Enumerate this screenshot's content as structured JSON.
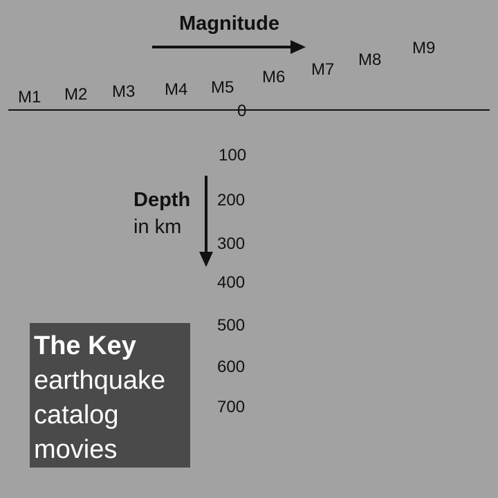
{
  "magnitude": {
    "title": "Magnitude",
    "labels": [
      "M1",
      "M2",
      "M3",
      "M4",
      "M5",
      "M6",
      "M7",
      "M8",
      "M9"
    ]
  },
  "depth": {
    "title": "Depth",
    "unit": "in km",
    "labels": [
      "0",
      "100",
      "200",
      "300",
      "400",
      "500",
      "600",
      "700"
    ]
  },
  "key": {
    "title": "The Key",
    "lines": [
      "earthquake",
      "catalog",
      "movies"
    ]
  },
  "colors": {
    "background": "#a2a2a2",
    "key_box": "#4a4a4a",
    "key_text": "#ffffff",
    "ink": "#111111"
  }
}
